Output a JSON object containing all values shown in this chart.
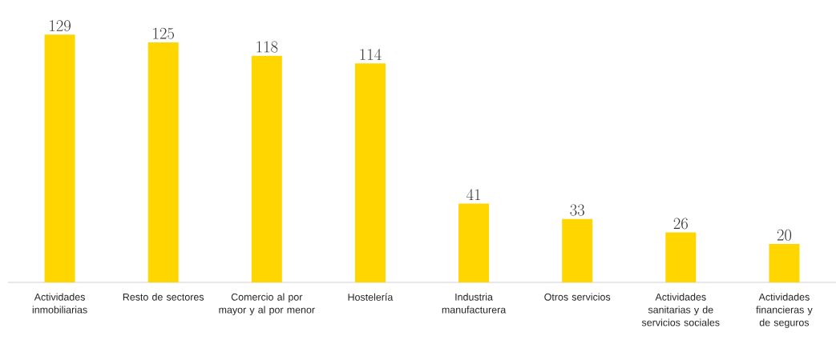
{
  "chart_data": {
    "type": "bar",
    "categories": [
      "Actividades inmobiliarias",
      "Resto de sectores",
      "Comercio al por mayor y al por menor",
      "Hostelería",
      "Industria manufacturera",
      "Otros servicios",
      "Actividades sanitarias y de servicios sociales",
      "Actividades financieras y de seguros"
    ],
    "values": [
      129,
      125,
      118,
      114,
      41,
      33,
      26,
      20
    ],
    "color": "#ffd600",
    "data_labels": true
  }
}
